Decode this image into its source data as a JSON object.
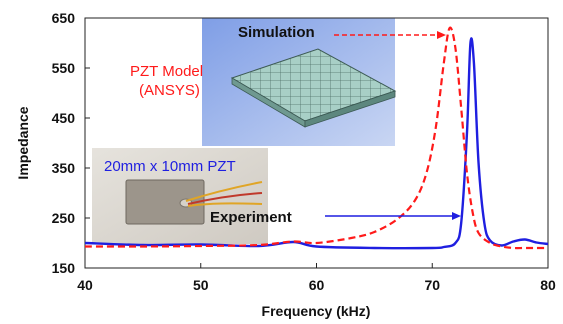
{
  "chart_data": {
    "type": "line",
    "xlabel": "Frequency (kHz)",
    "ylabel": "Impedance",
    "xlim": [
      40,
      80
    ],
    "ylim": [
      150,
      650
    ],
    "xticks": [
      40,
      50,
      60,
      70,
      80
    ],
    "yticks": [
      150,
      250,
      350,
      450,
      550,
      650
    ],
    "grid": false,
    "series": [
      {
        "name": "Experiment",
        "color": "#1f1fe0",
        "style": "solid",
        "x": [
          40,
          45,
          50,
          55,
          58,
          60,
          65,
          70,
          71,
          72,
          72.5,
          73,
          73.3,
          73.6,
          74,
          74.5,
          75,
          76,
          77,
          78,
          79,
          80
        ],
        "y": [
          200,
          196,
          197,
          194,
          202,
          193,
          190,
          190,
          192,
          200,
          240,
          420,
          600,
          560,
          360,
          240,
          205,
          195,
          203,
          207,
          201,
          198
        ]
      },
      {
        "name": "PZT Model (ANSYS)",
        "color": "#ff1a1a",
        "style": "dashed",
        "x": [
          40,
          45,
          50,
          55,
          58,
          60,
          63,
          65,
          67,
          68.5,
          69.5,
          70.3,
          71,
          71.5,
          72,
          72.5,
          73,
          73.5,
          74,
          75,
          76,
          77,
          78,
          79,
          80
        ],
        "y": [
          193,
          193,
          194,
          196,
          203,
          200,
          210,
          222,
          248,
          285,
          340,
          430,
          560,
          630,
          590,
          470,
          340,
          260,
          220,
          200,
          193,
          190,
          190,
          190,
          190
        ]
      }
    ],
    "annotations": {
      "simulation": "Simulation",
      "model_line1": "PZT Model",
      "model_line2": "(ANSYS)",
      "photo_label": "20mm x 10mm PZT",
      "experiment": "Experiment"
    }
  }
}
